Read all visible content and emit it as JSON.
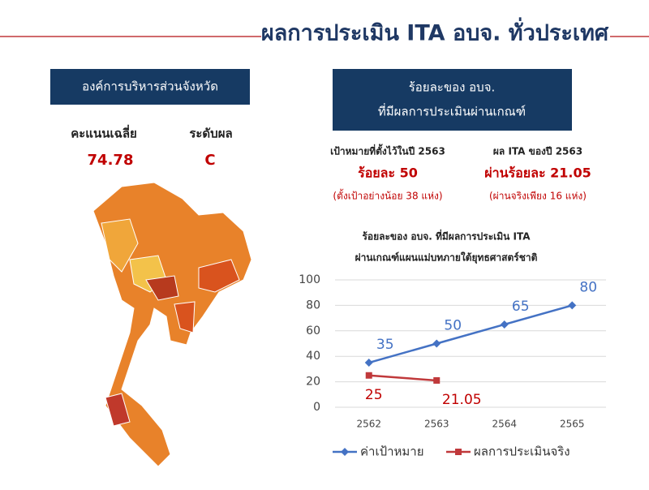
{
  "header": {
    "title": "ผลการประเมิน ITA อบจ. ทั่วประเทศ"
  },
  "left_panel": {
    "heading": "องค์การบริหารส่วนจังหวัด",
    "score_label": "คะแนนเฉลี่ย",
    "level_label": "ระดับผล",
    "score": "74.78",
    "level": "C"
  },
  "right_panel": {
    "heading_line1": "ร้อยละของ อบจ.",
    "heading_line2": "ที่มีผลการประเมินผ่านเกณฑ์",
    "target_label": "เป้าหมายที่ตั้งไว้ในปี 2563",
    "target_value": "ร้อยละ 50",
    "target_note": "(ตั้งเป้าอย่างน้อย 38 แห่ง)",
    "result_label": "ผล ITA ของปี 2563",
    "result_value": "ผ่านร้อยละ 21.05",
    "result_note": "(ผ่านจริงเพียง 16 แห่ง)"
  },
  "chart_data": {
    "type": "line",
    "title": [
      "ร้อยละของ อบจ. ที่มีผลการประเมิน ITA",
      "ผ่านเกณฑ์แผนแม่บทภายใต้ยุทธศาสตร์ชาติ"
    ],
    "categories": [
      "2562",
      "2563",
      "2564",
      "2565"
    ],
    "series": [
      {
        "name": "ค่าเป้าหมาย",
        "color": "#4472c4",
        "values": [
          35,
          50,
          65,
          80
        ]
      },
      {
        "name": "ผลการประเมินจริง",
        "color": "#c0393b",
        "values": [
          25,
          21.05,
          null,
          null
        ]
      }
    ],
    "ylim": [
      0,
      100
    ],
    "yticks": [
      0,
      20,
      40,
      60,
      80,
      100
    ],
    "grid": true,
    "legend": "bottom"
  }
}
